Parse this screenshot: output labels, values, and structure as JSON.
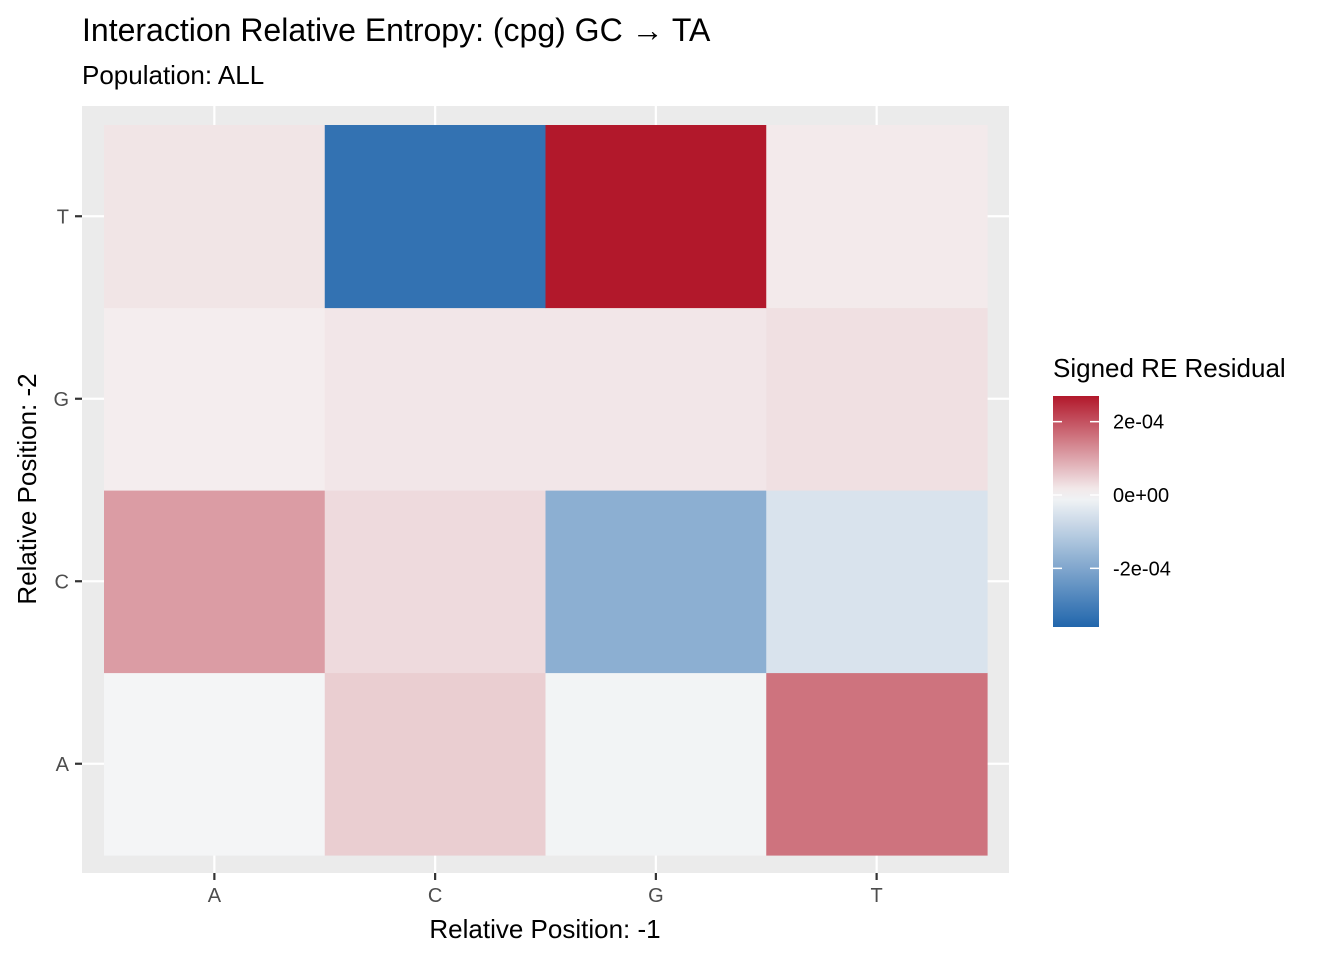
{
  "chart_data": {
    "type": "heatmap",
    "title": "Interaction Relative Entropy: (cpg) GC → TA",
    "subtitle": "Population: ALL",
    "xlabel": "Relative Position: -1",
    "ylabel": "Relative Position: -2",
    "x_categories": [
      "A",
      "C",
      "G",
      "T"
    ],
    "y_categories": [
      "A",
      "C",
      "G",
      "T"
    ],
    "values": [
      [
        -5e-06,
        5e-05,
        -8e-06,
        0.00016
      ],
      [
        0.00011,
        3.5e-05,
        -0.00018,
        -5e-05
      ],
      [
        1.2e-05,
        2e-05,
        2e-05,
        2.8e-05
      ],
      [
        2.2e-05,
        -0.00033,
        0.00027,
        1.6e-05
      ]
    ],
    "legend": {
      "title": "Signed RE Residual",
      "position": "right",
      "labels": [
        "2e-04",
        "0e+00",
        "-2e-04"
      ],
      "label_values": [
        0.0002,
        0,
        -0.0002
      ],
      "range": [
        -0.00036,
        0.00027
      ]
    },
    "colors": {
      "panel_background": "#ebebeb",
      "grid": "#ffffff",
      "scale_low": "#2166ac",
      "scale_mid": "#f7f7f7",
      "scale_high": "#b2182b"
    }
  }
}
